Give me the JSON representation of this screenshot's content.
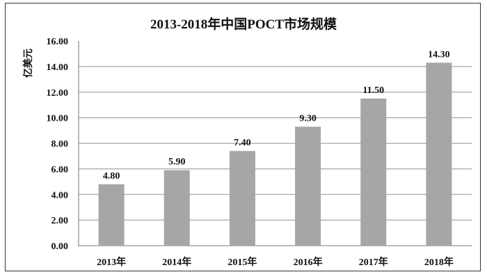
{
  "chart_data": {
    "type": "bar",
    "title": "2013-2018年中国POCT市场规模",
    "xlabel": "",
    "ylabel": "亿美元",
    "categories": [
      "2013年",
      "2014年",
      "2015年",
      "2016年",
      "2017年",
      "2018年"
    ],
    "values": [
      4.8,
      5.9,
      7.4,
      9.3,
      11.5,
      14.3
    ],
    "value_labels": [
      "4.80",
      "5.90",
      "7.40",
      "9.30",
      "11.50",
      "14.30"
    ],
    "ylim": [
      0,
      16
    ],
    "yticks": [
      "0.00",
      "2.00",
      "4.00",
      "6.00",
      "8.00",
      "10.00",
      "12.00",
      "14.00",
      "16.00"
    ],
    "grid": true,
    "legend": null,
    "bar_color": "#a6a6a6",
    "grid_color": "#a6a6a6"
  }
}
